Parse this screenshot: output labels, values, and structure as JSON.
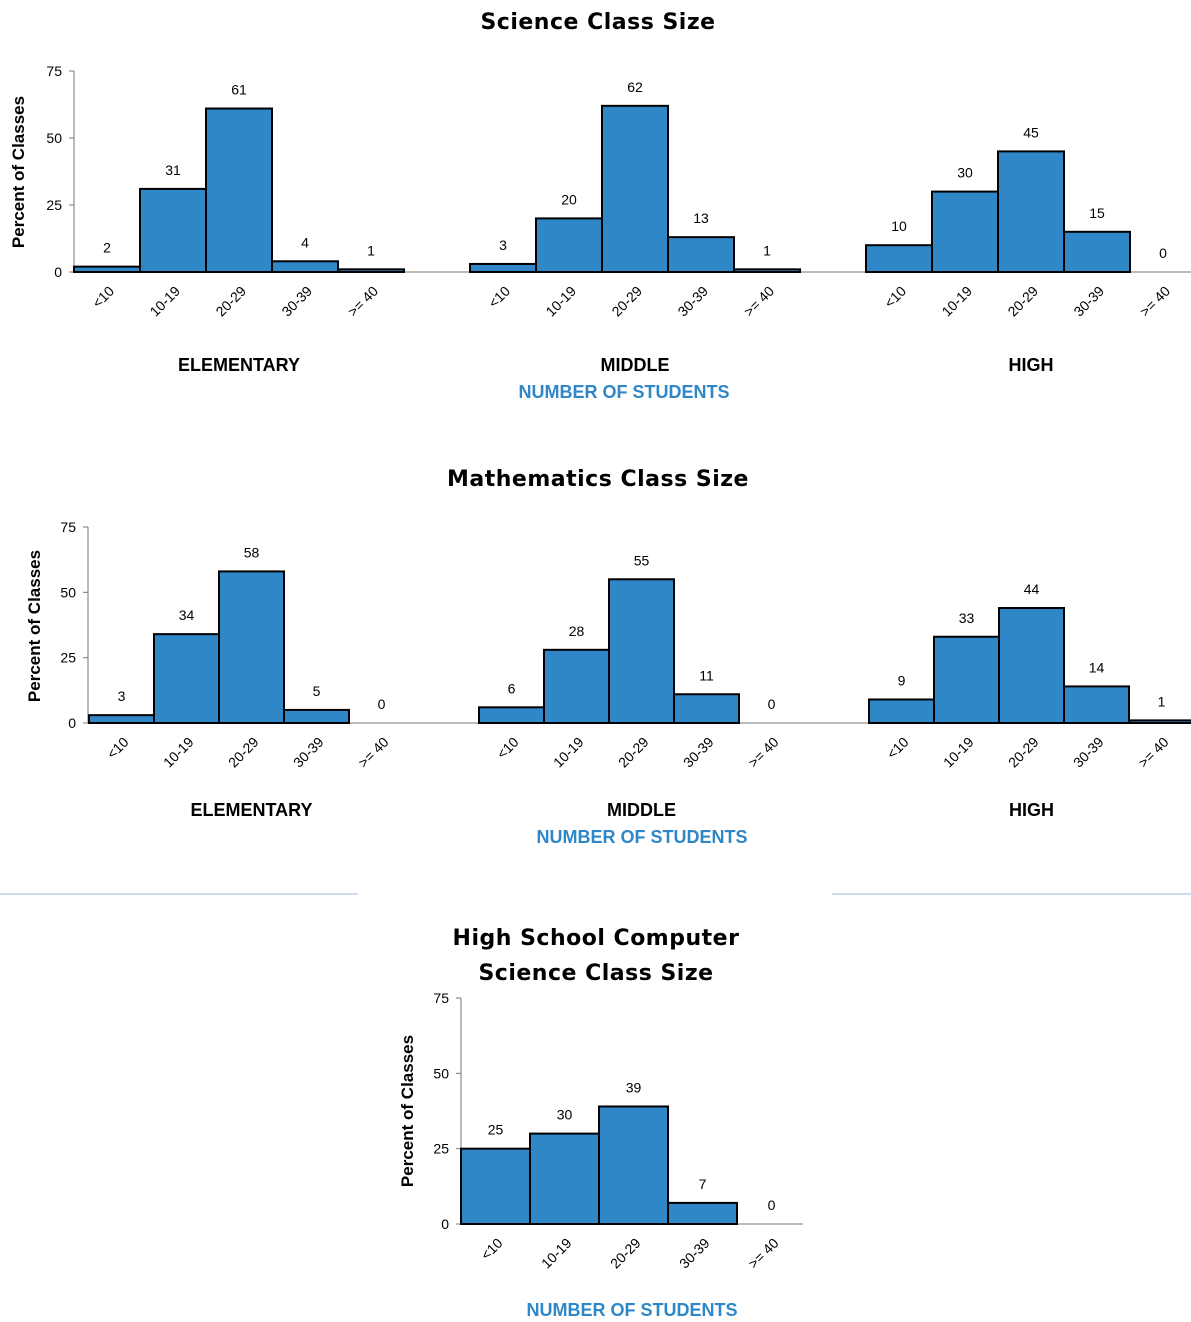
{
  "colors": {
    "bar": "#2f87c8",
    "bar_outline": "#000000",
    "axis_title": "#2f87c8",
    "separator": "#b9d3ea"
  },
  "chart_data": [
    {
      "type": "bar",
      "title": "Science Class Size",
      "ylabel": "Percent of Classes",
      "xlabel": "NUMBER OF STUDENTS",
      "ylim": [
        0,
        75
      ],
      "yticks": [
        "0",
        "25",
        "50",
        "75"
      ],
      "categories": [
        "<10",
        "10-19",
        "20-29",
        "30-39",
        ">= 40"
      ],
      "groups": [
        {
          "name": "ELEMENTARY",
          "values": [
            2,
            31,
            61,
            4,
            1
          ]
        },
        {
          "name": "MIDDLE",
          "values": [
            3,
            20,
            62,
            13,
            1
          ]
        },
        {
          "name": "HIGH",
          "values": [
            10,
            30,
            45,
            15,
            0
          ]
        }
      ]
    },
    {
      "type": "bar",
      "title": "Mathematics Class Size",
      "ylabel": "Percent of Classes",
      "xlabel": "NUMBER OF STUDENTS",
      "ylim": [
        0,
        75
      ],
      "yticks": [
        "0",
        "25",
        "50",
        "75"
      ],
      "categories": [
        "<10",
        "10-19",
        "20-29",
        "30-39",
        ">= 40"
      ],
      "groups": [
        {
          "name": "ELEMENTARY",
          "values": [
            3,
            34,
            58,
            5,
            0
          ]
        },
        {
          "name": "MIDDLE",
          "values": [
            6,
            28,
            55,
            11,
            0
          ]
        },
        {
          "name": "HIGH",
          "values": [
            9,
            33,
            44,
            14,
            1
          ]
        }
      ]
    },
    {
      "type": "bar",
      "title_lines": [
        "High School Computer",
        "Science Class Size"
      ],
      "ylabel": "Percent of Classes",
      "xlabel": "NUMBER OF STUDENTS",
      "ylim": [
        0,
        75
      ],
      "yticks": [
        "0",
        "25",
        "50",
        "75"
      ],
      "categories": [
        "<10",
        "10-19",
        "20-29",
        "30-39",
        ">= 40"
      ],
      "groups": [
        {
          "name": "",
          "values": [
            25,
            30,
            39,
            7,
            0
          ]
        }
      ]
    }
  ]
}
